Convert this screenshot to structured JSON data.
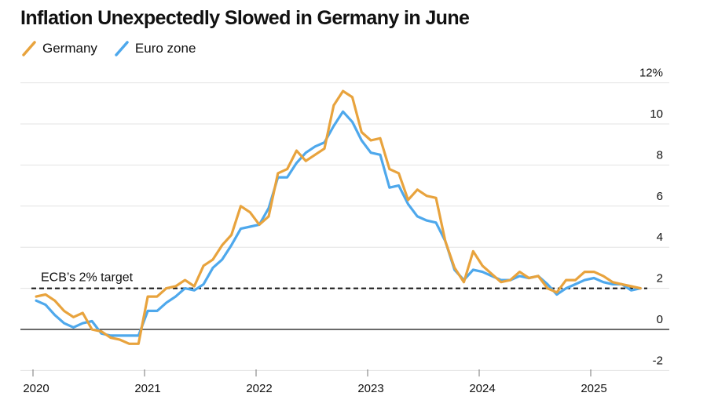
{
  "title": "Inflation Unexpectedly Slowed in Germany in June",
  "legend": [
    {
      "label": "Germany",
      "color": "#E8A33D"
    },
    {
      "label": "Euro zone",
      "color": "#4EA8EC"
    }
  ],
  "chart_data": {
    "type": "line",
    "title": "Inflation Unexpectedly Slowed in Germany in June",
    "xlabel": "",
    "ylabel": "",
    "x_tick_labels": [
      "2020",
      "2021",
      "2022",
      "2023",
      "2024",
      "2025"
    ],
    "y_ticks": [
      -2,
      0,
      2,
      4,
      6,
      8,
      10,
      12
    ],
    "y_tick_labels": [
      "-2",
      "0",
      "2",
      "4",
      "6",
      "8",
      "10",
      "12%"
    ],
    "ylim": [
      -2,
      12
    ],
    "xlim": [
      2020.0,
      2025.75
    ],
    "start": "2020-01",
    "target_line": {
      "value": 2,
      "label": "ECB’s 2% target"
    },
    "series": [
      {
        "name": "Germany",
        "color": "#E8A33D",
        "values": [
          1.6,
          1.7,
          1.4,
          0.9,
          0.6,
          0.8,
          0.0,
          -0.1,
          -0.4,
          -0.5,
          -0.7,
          -0.7,
          1.6,
          1.6,
          2.0,
          2.1,
          2.4,
          2.1,
          3.1,
          3.4,
          4.1,
          4.6,
          6.0,
          5.7,
          5.1,
          5.5,
          7.6,
          7.8,
          8.7,
          8.2,
          8.5,
          8.8,
          10.9,
          11.6,
          11.3,
          9.6,
          9.2,
          9.3,
          7.8,
          7.6,
          6.3,
          6.8,
          6.5,
          6.4,
          4.3,
          3.0,
          2.3,
          3.8,
          3.1,
          2.7,
          2.3,
          2.4,
          2.8,
          2.5,
          2.6,
          2.0,
          1.8,
          2.4,
          2.4,
          2.8,
          2.8,
          2.6,
          2.3,
          2.2,
          2.1,
          2.0
        ]
      },
      {
        "name": "Euro zone",
        "color": "#4EA8EC",
        "values": [
          1.4,
          1.2,
          0.7,
          0.3,
          0.1,
          0.3,
          0.4,
          -0.2,
          -0.3,
          -0.3,
          -0.3,
          -0.3,
          0.9,
          0.9,
          1.3,
          1.6,
          2.0,
          1.9,
          2.2,
          3.0,
          3.4,
          4.1,
          4.9,
          5.0,
          5.1,
          5.9,
          7.4,
          7.4,
          8.1,
          8.6,
          8.9,
          9.1,
          9.9,
          10.6,
          10.1,
          9.2,
          8.6,
          8.5,
          6.9,
          7.0,
          6.1,
          5.5,
          5.3,
          5.2,
          4.3,
          2.9,
          2.4,
          2.9,
          2.8,
          2.6,
          2.4,
          2.4,
          2.6,
          2.5,
          2.6,
          2.2,
          1.7,
          2.0,
          2.2,
          2.4,
          2.5,
          2.3,
          2.2,
          2.2,
          1.9,
          2.0
        ]
      }
    ]
  }
}
